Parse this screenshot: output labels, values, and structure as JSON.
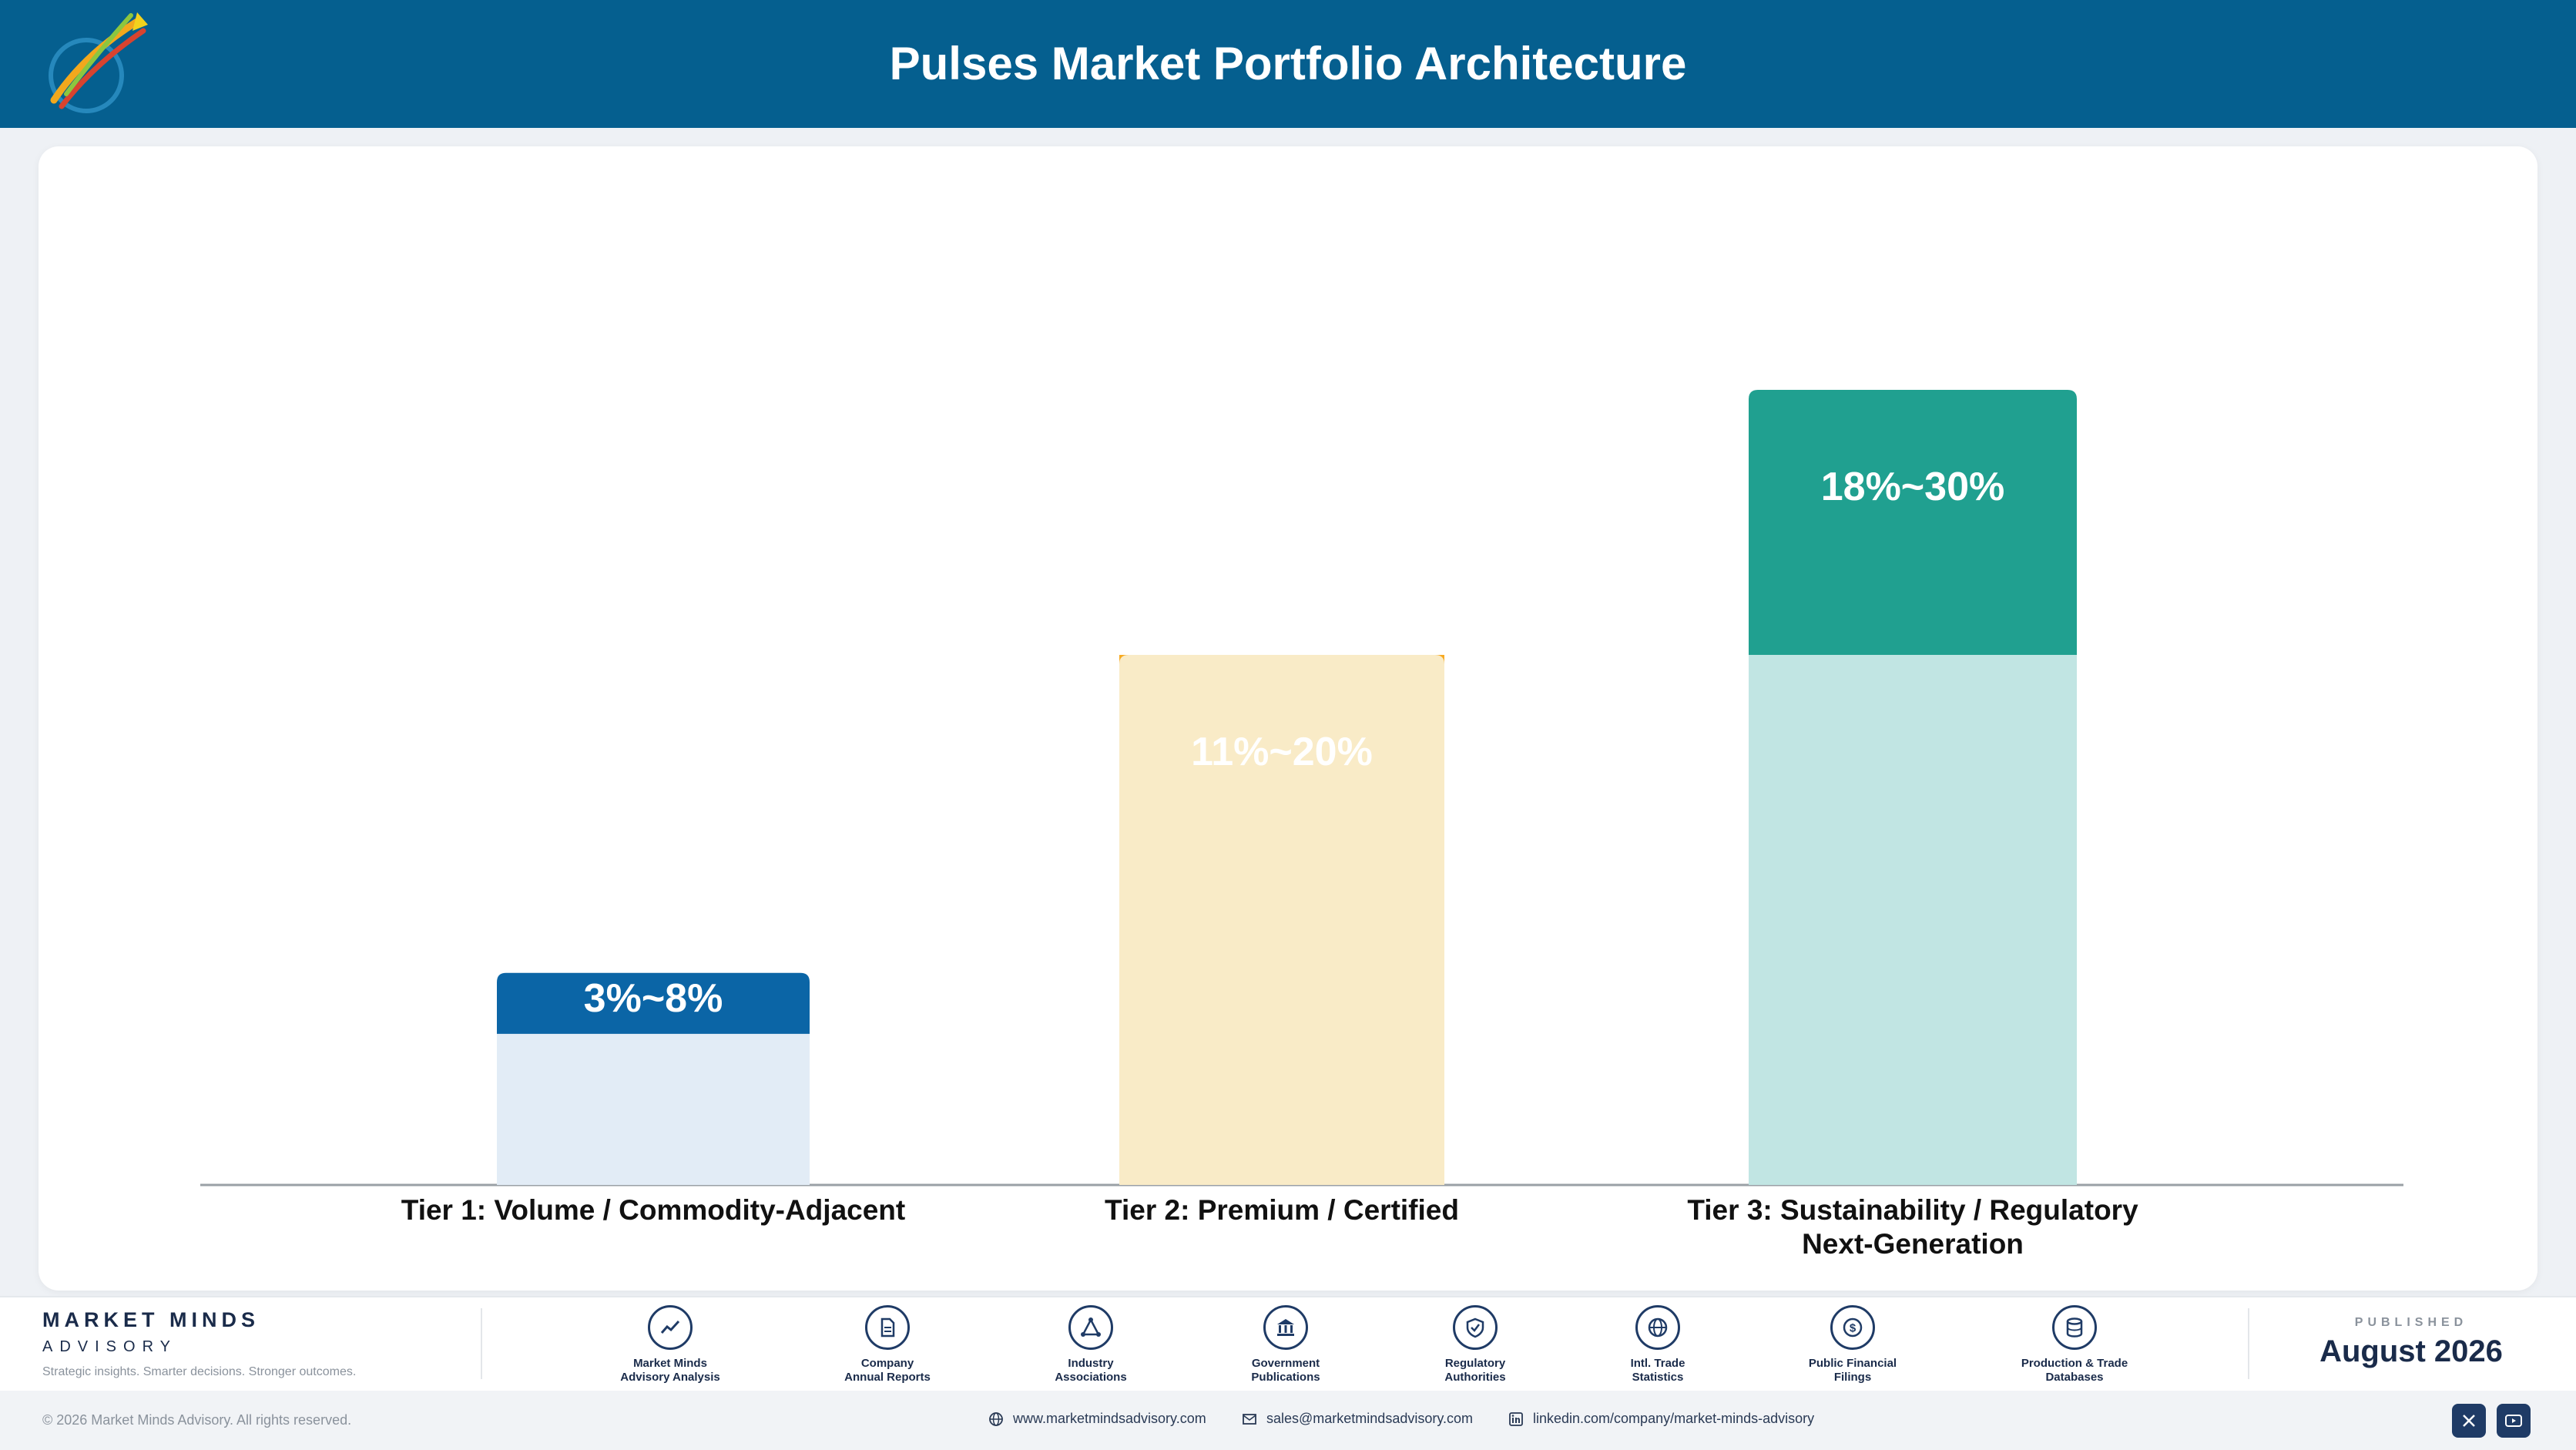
{
  "header": {
    "title": "Pulses Market Portfolio Architecture",
    "logo_icon": "rocket-logo-icon"
  },
  "chart_data": {
    "type": "bar",
    "categories": [
      [
        "Tier 1: Volume / Commodity-Adjacent"
      ],
      [
        "Tier 2: Premium / Certified"
      ],
      [
        "Tier 3: Sustainability / Regulatory",
        "Next-Generation"
      ]
    ],
    "ranges": [
      [
        3,
        8
      ],
      [
        11,
        20
      ],
      [
        18,
        30
      ]
    ],
    "labels": [
      "3%~8%",
      "11%~20%",
      "18%~30%"
    ],
    "colors": {
      "top": [
        "#0b65a6",
        "#f7aa22",
        "#20a090"
      ],
      "base": [
        "#e2ecf6",
        "#f9ebc7",
        "#c1e5e3"
      ]
    },
    "grid": false,
    "legend": "none"
  },
  "footer": {
    "brand_name": "MARKET MINDS",
    "brand_sub": "ADVISORY",
    "tagline": "Strategic insights. Smarter decisions. Stronger outcomes.",
    "sources": [
      {
        "line1": "Market Minds",
        "line2": "Advisory Analysis",
        "icon": "trend-line-icon"
      },
      {
        "line1": "Company",
        "line2": "Annual Reports",
        "icon": "document-icon"
      },
      {
        "line1": "Industry",
        "line2": "Associations",
        "icon": "network-icon"
      },
      {
        "line1": "Government",
        "line2": "Publications",
        "icon": "building-icon"
      },
      {
        "line1": "Regulatory",
        "line2": "Authorities",
        "icon": "shield-icon"
      },
      {
        "line1": "Intl. Trade",
        "line2": "Statistics",
        "icon": "globe-icon"
      },
      {
        "line1": "Public Financial",
        "line2": "Filings",
        "icon": "currency-icon"
      },
      {
        "line1": "Production & Trade",
        "line2": "Databases",
        "icon": "database-icon"
      }
    ],
    "published_label": "PUBLISHED",
    "published_date": "August 2026",
    "copyright": "© 2026 Market Minds Advisory. All rights reserved.",
    "website": "www.marketmindsadvisory.com",
    "email": "sales@marketmindsadvisory.com",
    "linkedin": "linkedin.com/company/market-minds-advisory"
  }
}
